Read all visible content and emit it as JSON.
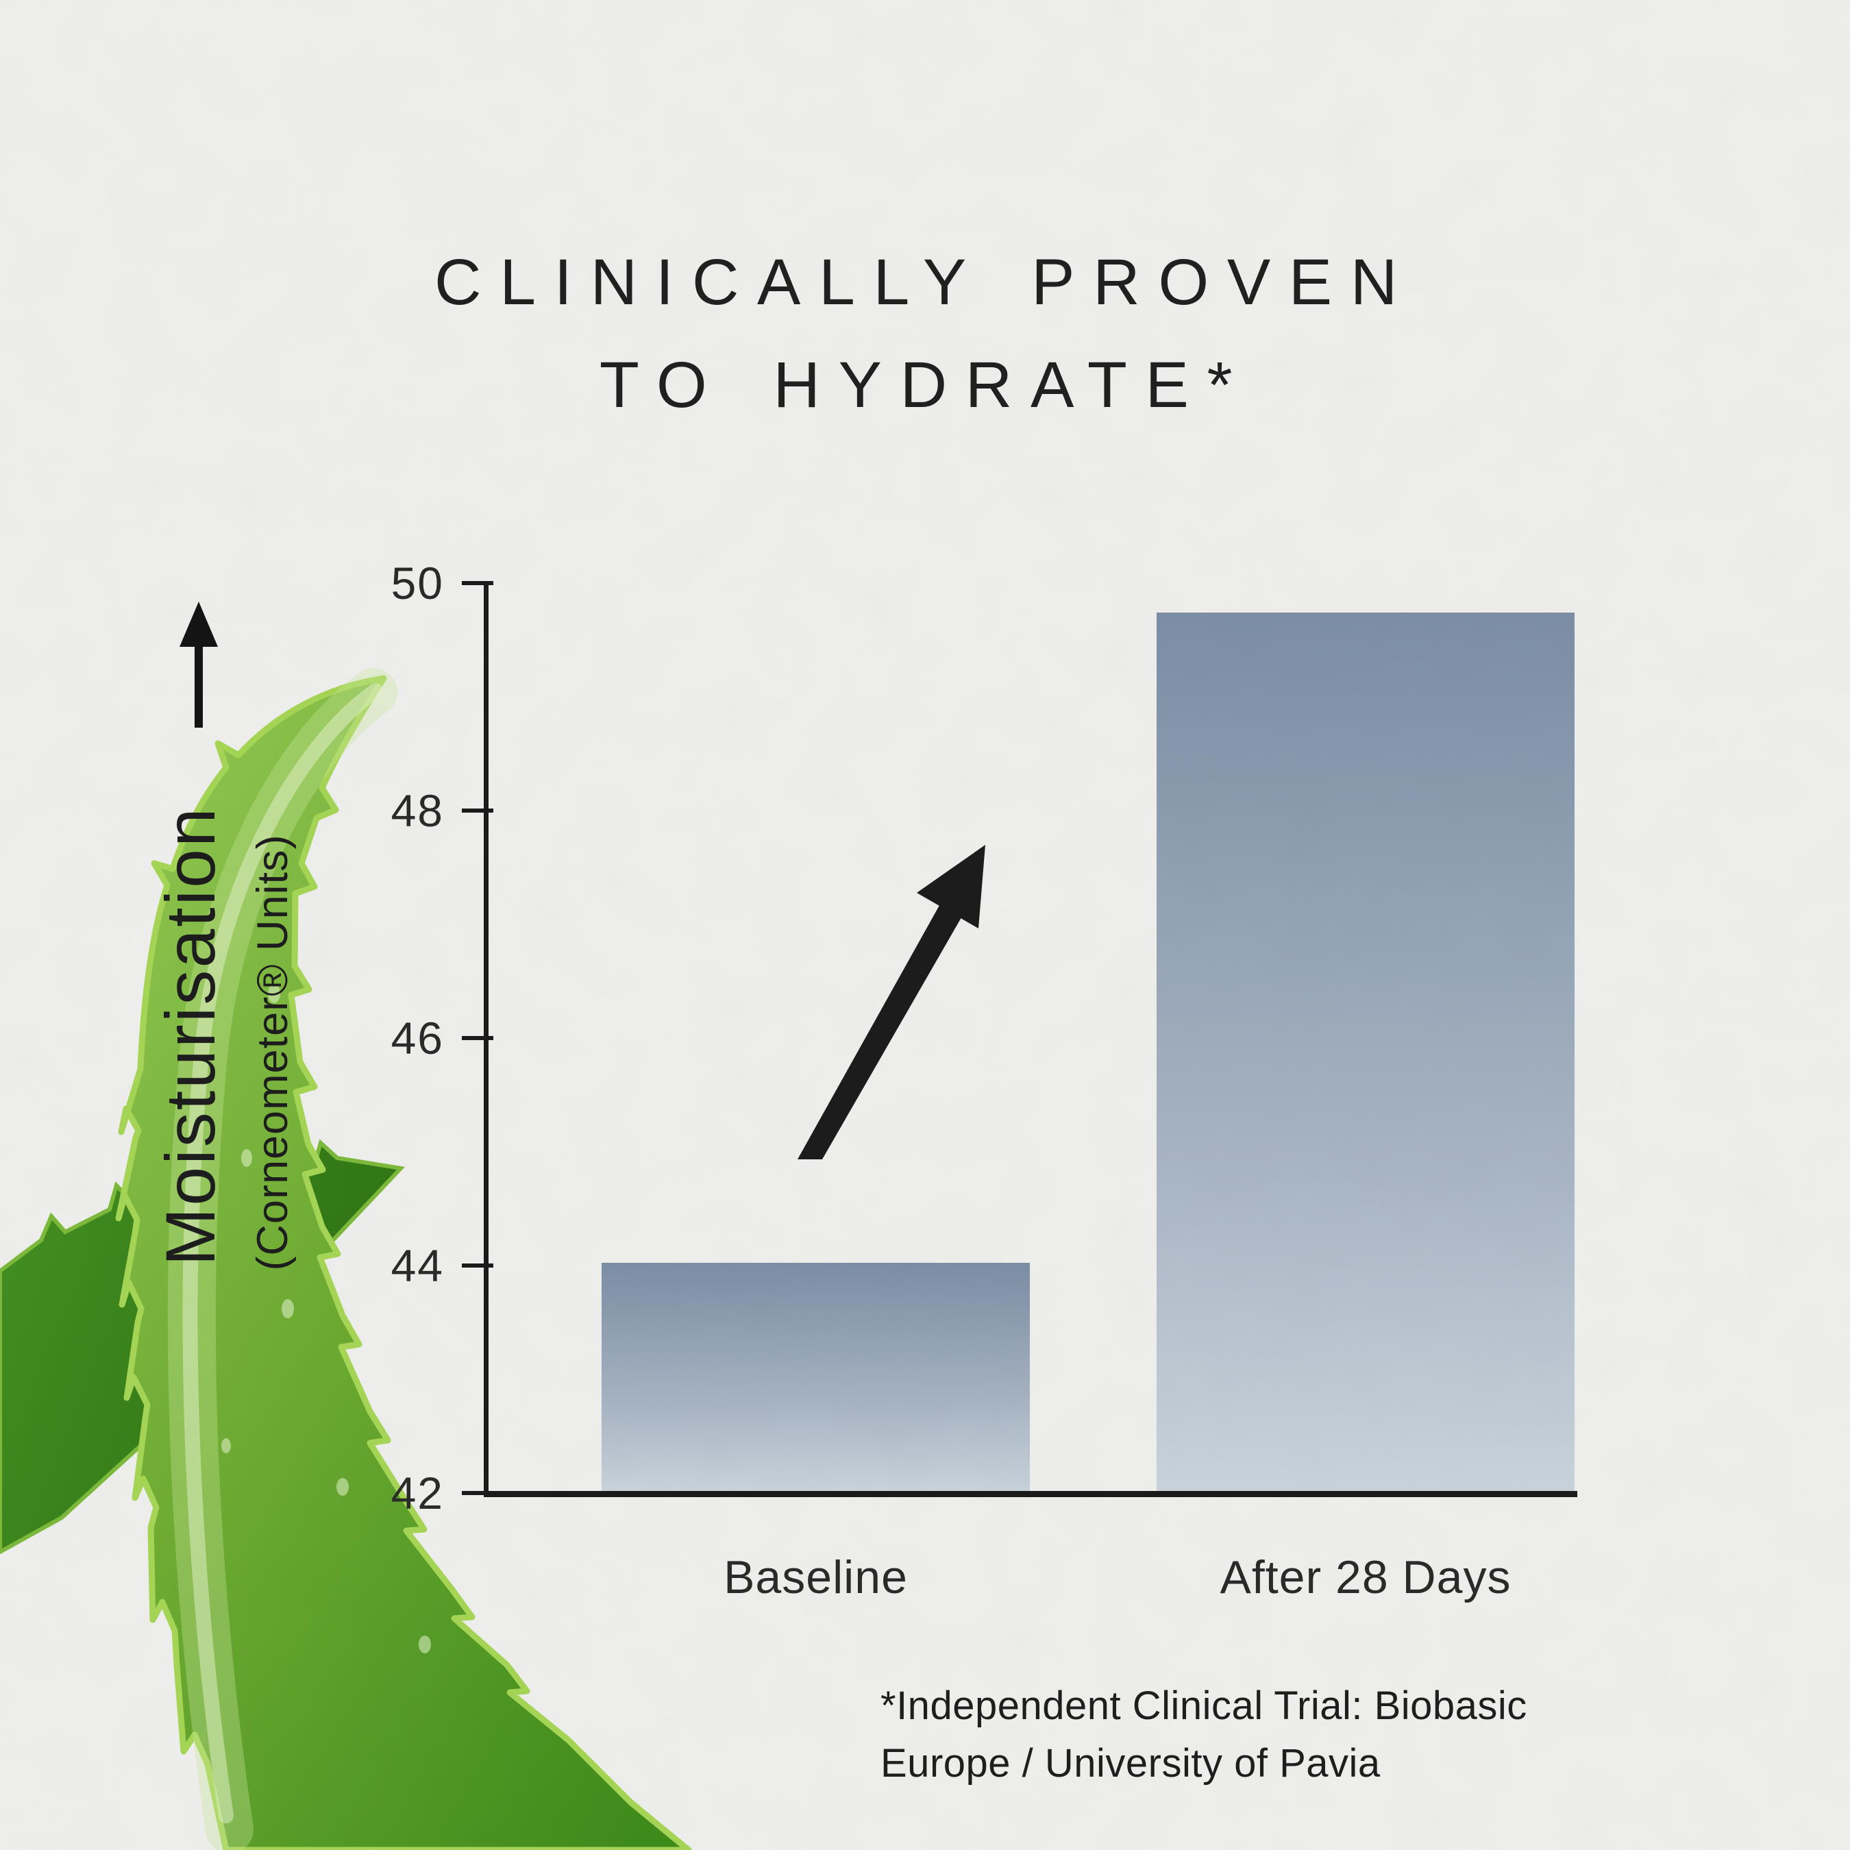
{
  "title": {
    "line1": "CLINICALLY PROVEN",
    "line2": "TO HYDRATE*"
  },
  "y_axis": {
    "label": "Moisturisation",
    "sub_label": "(Corneometer® Units)",
    "ticks": [
      "50",
      "48",
      "46",
      "44",
      "42"
    ]
  },
  "x_axis": {
    "categories": [
      "Baseline",
      "After 28 Days"
    ]
  },
  "footnote": {
    "line1": "*Independent Clinical Trial: Biobasic",
    "line2": "Europe / University of Pavia"
  },
  "chart_data": {
    "type": "bar",
    "categories": [
      "Baseline",
      "After 28 Days"
    ],
    "values": [
      44,
      49.7
    ],
    "title": "CLINICALLY PROVEN TO HYDRATE*",
    "xlabel": "",
    "ylabel": "Moisturisation (Corneometer® Units)",
    "ylim": [
      42,
      50
    ],
    "yticks": [
      42,
      44,
      46,
      48,
      50
    ],
    "grid": false,
    "legend": false,
    "bar_gradient_top": "#7e90a7",
    "bar_gradient_bottom": "#ccd6df",
    "annotation": "large upward diagonal arrow between the two bars indicating increase"
  },
  "colors": {
    "paper": "#f2f2f0",
    "axis": "#1b1b1b",
    "text": "#202020",
    "bar_top": "#7e90a7",
    "bar_mid": "#aab7c6",
    "bar_bottom": "#ccd6df",
    "leaf_bright": "#76b23a",
    "leaf_dark": "#3e8c1d",
    "leaf_edge": "#a8d957"
  },
  "icons": {
    "trend_arrow": "diagonal-up-arrow",
    "axis_direction_arrow": "up-arrow"
  },
  "decor": {
    "plant": "aloe vera leaves, bottom left"
  }
}
